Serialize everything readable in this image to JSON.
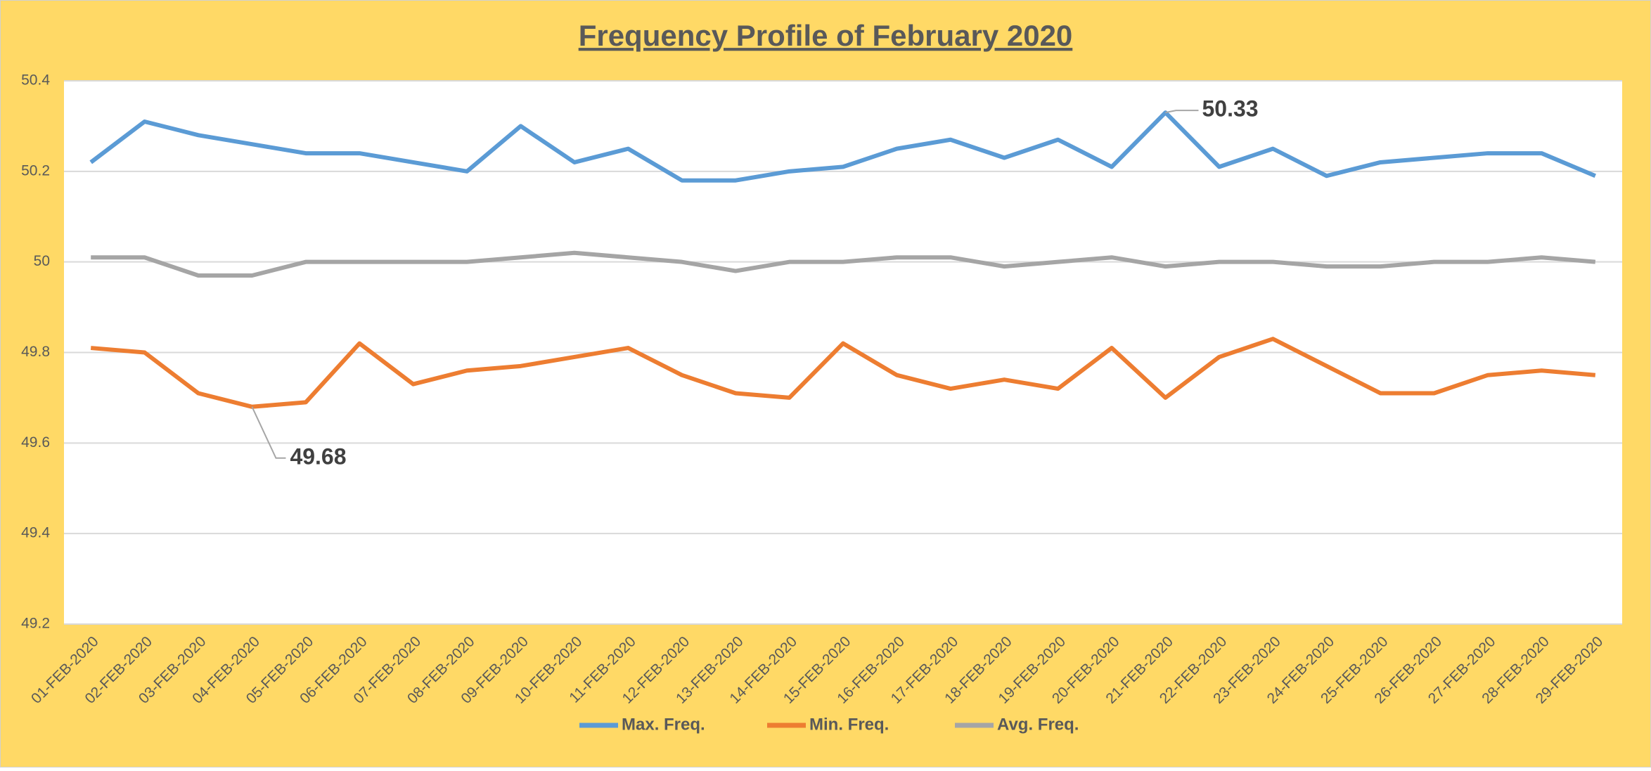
{
  "chart_data": {
    "type": "line",
    "title": "Frequency Profile of February 2020",
    "categories": [
      "01-FEB-2020",
      "02-FEB-2020",
      "03-FEB-2020",
      "04-FEB-2020",
      "05-FEB-2020",
      "06-FEB-2020",
      "07-FEB-2020",
      "08-FEB-2020",
      "09-FEB-2020",
      "10-FEB-2020",
      "11-FEB-2020",
      "12-FEB-2020",
      "13-FEB-2020",
      "14-FEB-2020",
      "15-FEB-2020",
      "16-FEB-2020",
      "17-FEB-2020",
      "18-FEB-2020",
      "19-FEB-2020",
      "20-FEB-2020",
      "21-FEB-2020",
      "22-FEB-2020",
      "23-FEB-2020",
      "24-FEB-2020",
      "25-FEB-2020",
      "26-FEB-2020",
      "27-FEB-2020",
      "28-FEB-2020",
      "29-FEB-2020"
    ],
    "series": [
      {
        "name": "Max. Freq.",
        "color": "#5B9BD5",
        "labeled": [
          20
        ],
        "values": [
          50.22,
          50.31,
          50.28,
          50.26,
          50.24,
          50.24,
          50.22,
          50.2,
          50.3,
          50.22,
          50.25,
          50.18,
          50.18,
          50.2,
          50.21,
          50.25,
          50.27,
          50.23,
          50.27,
          50.21,
          50.33,
          50.21,
          50.25,
          50.19,
          50.22,
          50.23,
          50.24,
          50.24,
          50.19
        ]
      },
      {
        "name": "Min. Freq.",
        "color": "#ED7D31",
        "labeled": [
          3
        ],
        "values": [
          49.81,
          49.8,
          49.71,
          49.68,
          49.69,
          49.82,
          49.73,
          49.76,
          49.77,
          49.79,
          49.81,
          49.75,
          49.71,
          49.7,
          49.82,
          49.75,
          49.72,
          49.74,
          49.72,
          49.81,
          49.7,
          49.79,
          49.83,
          49.77,
          49.71,
          49.71,
          49.75,
          49.76,
          49.75
        ]
      },
      {
        "name": "Avg. Freq.",
        "color": "#A5A5A5",
        "labeled": [],
        "values": [
          50.01,
          50.01,
          49.97,
          49.97,
          50.0,
          50.0,
          50.0,
          50.0,
          50.01,
          50.02,
          50.01,
          50.0,
          49.98,
          50.0,
          50.0,
          50.01,
          50.01,
          49.99,
          50.0,
          50.01,
          49.99,
          50.0,
          50.0,
          49.99,
          49.99,
          50.0,
          50.0,
          50.01,
          50.0
        ]
      }
    ],
    "ylim": [
      49.2,
      50.4
    ],
    "yticks": [
      49.2,
      49.4,
      49.6,
      49.8,
      50,
      50.2,
      50.4
    ],
    "grid": true,
    "legend": "bottom"
  }
}
